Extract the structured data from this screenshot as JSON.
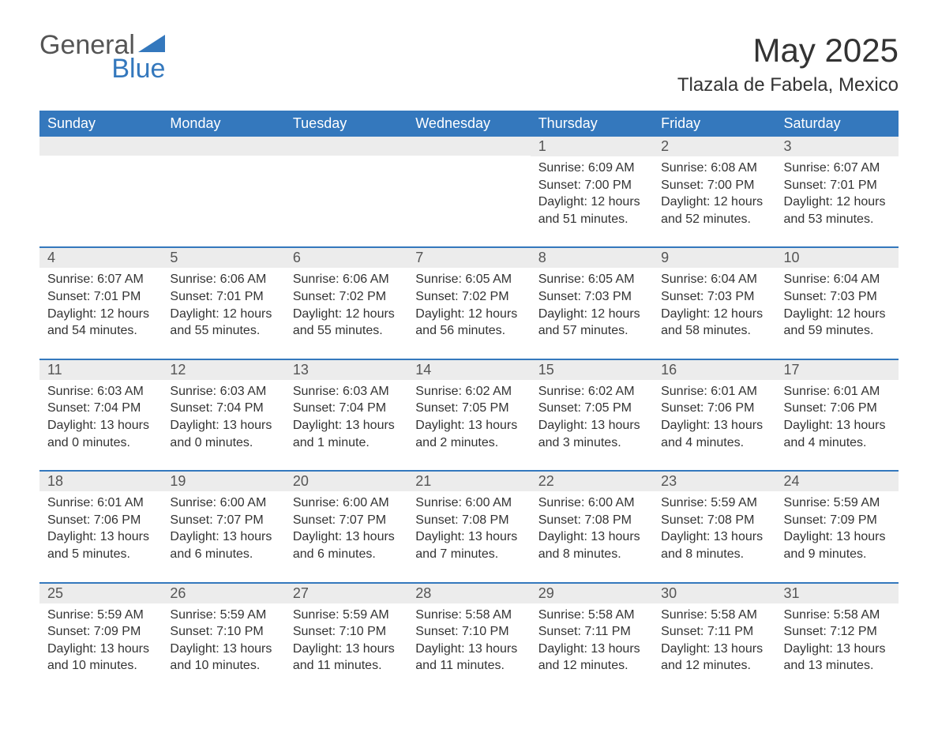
{
  "brand": {
    "word1": "General",
    "word2": "Blue",
    "color_general": "#555555",
    "color_blue": "#3478bd",
    "triangle_color": "#3478bd"
  },
  "header": {
    "month_title": "May 2025",
    "location": "Tlazala de Fabela, Mexico"
  },
  "colors": {
    "header_bg": "#3478bd",
    "header_text": "#ffffff",
    "daynum_bg": "#ececec",
    "row_border": "#3478bd",
    "body_text": "#333333",
    "page_bg": "#ffffff"
  },
  "day_headers": [
    "Sunday",
    "Monday",
    "Tuesday",
    "Wednesday",
    "Thursday",
    "Friday",
    "Saturday"
  ],
  "weeks": [
    [
      {
        "num": "",
        "sunrise": "",
        "sunset": "",
        "daylight": ""
      },
      {
        "num": "",
        "sunrise": "",
        "sunset": "",
        "daylight": ""
      },
      {
        "num": "",
        "sunrise": "",
        "sunset": "",
        "daylight": ""
      },
      {
        "num": "",
        "sunrise": "",
        "sunset": "",
        "daylight": ""
      },
      {
        "num": "1",
        "sunrise": "Sunrise: 6:09 AM",
        "sunset": "Sunset: 7:00 PM",
        "daylight": "Daylight: 12 hours and 51 minutes."
      },
      {
        "num": "2",
        "sunrise": "Sunrise: 6:08 AM",
        "sunset": "Sunset: 7:00 PM",
        "daylight": "Daylight: 12 hours and 52 minutes."
      },
      {
        "num": "3",
        "sunrise": "Sunrise: 6:07 AM",
        "sunset": "Sunset: 7:01 PM",
        "daylight": "Daylight: 12 hours and 53 minutes."
      }
    ],
    [
      {
        "num": "4",
        "sunrise": "Sunrise: 6:07 AM",
        "sunset": "Sunset: 7:01 PM",
        "daylight": "Daylight: 12 hours and 54 minutes."
      },
      {
        "num": "5",
        "sunrise": "Sunrise: 6:06 AM",
        "sunset": "Sunset: 7:01 PM",
        "daylight": "Daylight: 12 hours and 55 minutes."
      },
      {
        "num": "6",
        "sunrise": "Sunrise: 6:06 AM",
        "sunset": "Sunset: 7:02 PM",
        "daylight": "Daylight: 12 hours and 55 minutes."
      },
      {
        "num": "7",
        "sunrise": "Sunrise: 6:05 AM",
        "sunset": "Sunset: 7:02 PM",
        "daylight": "Daylight: 12 hours and 56 minutes."
      },
      {
        "num": "8",
        "sunrise": "Sunrise: 6:05 AM",
        "sunset": "Sunset: 7:03 PM",
        "daylight": "Daylight: 12 hours and 57 minutes."
      },
      {
        "num": "9",
        "sunrise": "Sunrise: 6:04 AM",
        "sunset": "Sunset: 7:03 PM",
        "daylight": "Daylight: 12 hours and 58 minutes."
      },
      {
        "num": "10",
        "sunrise": "Sunrise: 6:04 AM",
        "sunset": "Sunset: 7:03 PM",
        "daylight": "Daylight: 12 hours and 59 minutes."
      }
    ],
    [
      {
        "num": "11",
        "sunrise": "Sunrise: 6:03 AM",
        "sunset": "Sunset: 7:04 PM",
        "daylight": "Daylight: 13 hours and 0 minutes."
      },
      {
        "num": "12",
        "sunrise": "Sunrise: 6:03 AM",
        "sunset": "Sunset: 7:04 PM",
        "daylight": "Daylight: 13 hours and 0 minutes."
      },
      {
        "num": "13",
        "sunrise": "Sunrise: 6:03 AM",
        "sunset": "Sunset: 7:04 PM",
        "daylight": "Daylight: 13 hours and 1 minute."
      },
      {
        "num": "14",
        "sunrise": "Sunrise: 6:02 AM",
        "sunset": "Sunset: 7:05 PM",
        "daylight": "Daylight: 13 hours and 2 minutes."
      },
      {
        "num": "15",
        "sunrise": "Sunrise: 6:02 AM",
        "sunset": "Sunset: 7:05 PM",
        "daylight": "Daylight: 13 hours and 3 minutes."
      },
      {
        "num": "16",
        "sunrise": "Sunrise: 6:01 AM",
        "sunset": "Sunset: 7:06 PM",
        "daylight": "Daylight: 13 hours and 4 minutes."
      },
      {
        "num": "17",
        "sunrise": "Sunrise: 6:01 AM",
        "sunset": "Sunset: 7:06 PM",
        "daylight": "Daylight: 13 hours and 4 minutes."
      }
    ],
    [
      {
        "num": "18",
        "sunrise": "Sunrise: 6:01 AM",
        "sunset": "Sunset: 7:06 PM",
        "daylight": "Daylight: 13 hours and 5 minutes."
      },
      {
        "num": "19",
        "sunrise": "Sunrise: 6:00 AM",
        "sunset": "Sunset: 7:07 PM",
        "daylight": "Daylight: 13 hours and 6 minutes."
      },
      {
        "num": "20",
        "sunrise": "Sunrise: 6:00 AM",
        "sunset": "Sunset: 7:07 PM",
        "daylight": "Daylight: 13 hours and 6 minutes."
      },
      {
        "num": "21",
        "sunrise": "Sunrise: 6:00 AM",
        "sunset": "Sunset: 7:08 PM",
        "daylight": "Daylight: 13 hours and 7 minutes."
      },
      {
        "num": "22",
        "sunrise": "Sunrise: 6:00 AM",
        "sunset": "Sunset: 7:08 PM",
        "daylight": "Daylight: 13 hours and 8 minutes."
      },
      {
        "num": "23",
        "sunrise": "Sunrise: 5:59 AM",
        "sunset": "Sunset: 7:08 PM",
        "daylight": "Daylight: 13 hours and 8 minutes."
      },
      {
        "num": "24",
        "sunrise": "Sunrise: 5:59 AM",
        "sunset": "Sunset: 7:09 PM",
        "daylight": "Daylight: 13 hours and 9 minutes."
      }
    ],
    [
      {
        "num": "25",
        "sunrise": "Sunrise: 5:59 AM",
        "sunset": "Sunset: 7:09 PM",
        "daylight": "Daylight: 13 hours and 10 minutes."
      },
      {
        "num": "26",
        "sunrise": "Sunrise: 5:59 AM",
        "sunset": "Sunset: 7:10 PM",
        "daylight": "Daylight: 13 hours and 10 minutes."
      },
      {
        "num": "27",
        "sunrise": "Sunrise: 5:59 AM",
        "sunset": "Sunset: 7:10 PM",
        "daylight": "Daylight: 13 hours and 11 minutes."
      },
      {
        "num": "28",
        "sunrise": "Sunrise: 5:58 AM",
        "sunset": "Sunset: 7:10 PM",
        "daylight": "Daylight: 13 hours and 11 minutes."
      },
      {
        "num": "29",
        "sunrise": "Sunrise: 5:58 AM",
        "sunset": "Sunset: 7:11 PM",
        "daylight": "Daylight: 13 hours and 12 minutes."
      },
      {
        "num": "30",
        "sunrise": "Sunrise: 5:58 AM",
        "sunset": "Sunset: 7:11 PM",
        "daylight": "Daylight: 13 hours and 12 minutes."
      },
      {
        "num": "31",
        "sunrise": "Sunrise: 5:58 AM",
        "sunset": "Sunset: 7:12 PM",
        "daylight": "Daylight: 13 hours and 13 minutes."
      }
    ]
  ]
}
